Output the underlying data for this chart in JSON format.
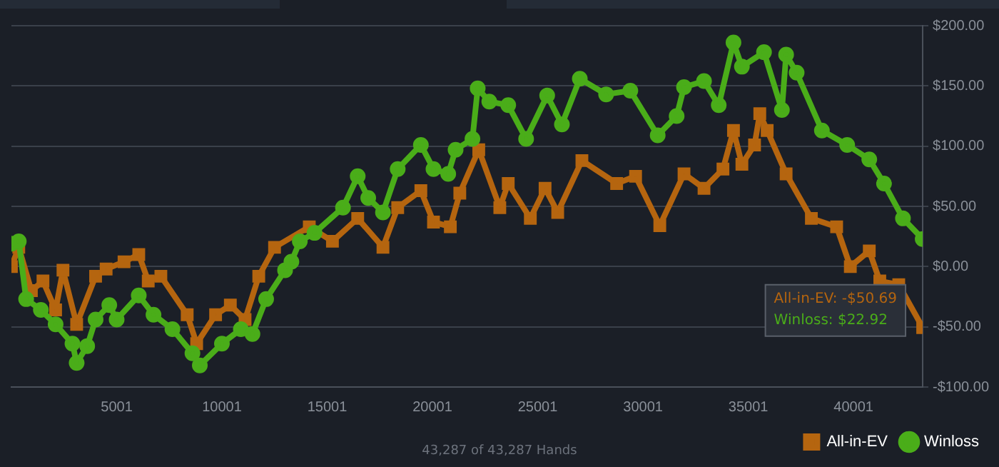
{
  "chart_data": {
    "type": "line",
    "xlim": [
      1,
      43287
    ],
    "xticks": [
      5001,
      10001,
      15001,
      20001,
      25001,
      30001,
      35001,
      40001
    ],
    "ylim": [
      -100,
      200
    ],
    "yticks": [
      {
        "value": -100,
        "label": "-$100.00"
      },
      {
        "value": -50,
        "label": "-$50.00"
      },
      {
        "value": 0,
        "label": "$0.00"
      },
      {
        "value": 50,
        "label": "$50.00"
      },
      {
        "value": 100,
        "label": "$100.00"
      },
      {
        "value": 150,
        "label": "$150.00"
      },
      {
        "value": 200,
        "label": "$200.00"
      }
    ],
    "grid": "y",
    "legend": "bottom right",
    "annotations": [
      "All-in-EV: -$50.69",
      "Winloss: $22.92",
      "43,287 of 43,287 Hands"
    ],
    "series": [
      {
        "name": "All-in-EV",
        "color": "#b5650f",
        "marker": "square",
        "x": [
          1,
          350,
          950,
          1500,
          2100,
          2450,
          3100,
          4000,
          4500,
          5350,
          6050,
          6500,
          7100,
          8350,
          8800,
          9700,
          10400,
          11100,
          11750,
          12500,
          14150,
          15250,
          16450,
          17650,
          18350,
          19450,
          20050,
          20850,
          21300,
          22200,
          23200,
          23600,
          24650,
          25350,
          25950,
          27100,
          28750,
          29650,
          30800,
          31950,
          32900,
          33800,
          34300,
          34700,
          35300,
          35550,
          35900,
          36800,
          38000,
          39200,
          39850,
          40750,
          41250,
          42150,
          43287
        ],
        "values": [
          0,
          16,
          -20,
          -12,
          -36,
          -3,
          -48,
          -8,
          -2,
          4,
          10,
          -12,
          -8,
          -40,
          -64,
          -40,
          -32,
          -44,
          -8,
          16,
          33,
          21,
          40,
          16,
          49,
          63,
          37,
          33,
          61,
          97,
          49,
          69,
          40,
          65,
          45,
          88,
          69,
          75,
          34,
          77,
          65,
          81,
          113,
          85,
          101,
          127,
          113,
          77,
          40,
          33,
          0,
          13,
          -12,
          -15,
          -50.69
        ]
      },
      {
        "name": "Winloss",
        "color": "#4aad19",
        "marker": "circle",
        "x": [
          1,
          350,
          700,
          1400,
          2100,
          2900,
          3100,
          3600,
          4000,
          4650,
          5000,
          6050,
          6750,
          7650,
          8600,
          8950,
          10000,
          10900,
          11450,
          12100,
          13000,
          13300,
          13700,
          14400,
          15750,
          16450,
          16950,
          17650,
          18350,
          19450,
          20050,
          20750,
          21100,
          21900,
          22150,
          22700,
          23600,
          24450,
          25450,
          26150,
          27000,
          28250,
          29400,
          30700,
          31600,
          31950,
          32900,
          33600,
          34300,
          34700,
          35750,
          36600,
          36800,
          37300,
          38500,
          39700,
          40750,
          41450,
          42350,
          43287
        ],
        "values": [
          19,
          21,
          -27,
          -36,
          -48,
          -64,
          -80,
          -66,
          -44,
          -32,
          -44,
          -24,
          -40,
          -52,
          -72,
          -82,
          -64,
          -52,
          -56,
          -27,
          -3,
          4,
          21,
          28,
          49,
          75,
          57,
          45,
          81,
          101,
          81,
          77,
          97,
          106,
          148,
          137,
          134,
          106,
          142,
          118,
          156,
          143,
          146,
          109,
          125,
          149,
          154,
          134,
          186,
          166,
          178,
          130,
          176,
          161,
          113,
          101,
          89,
          69,
          40,
          22.92
        ]
      }
    ]
  }
}
